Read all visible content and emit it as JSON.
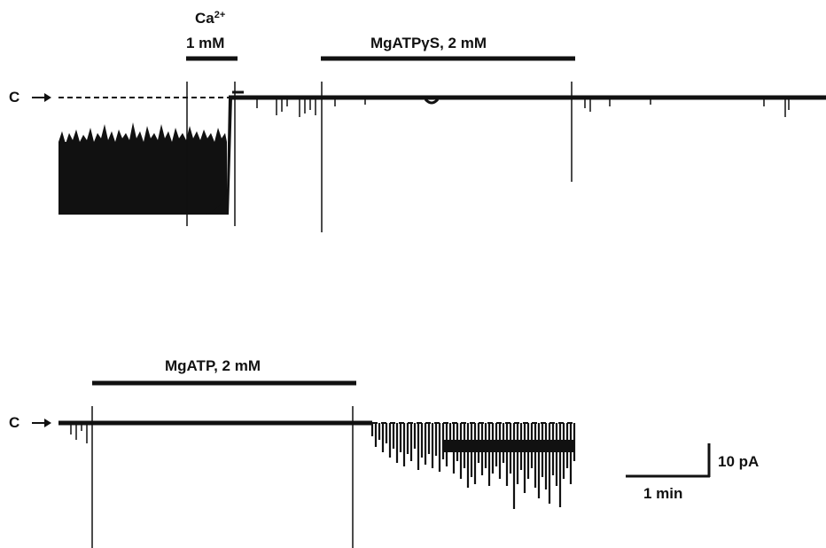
{
  "top_trace": {
    "closed_marker": "C",
    "calcium_label_base": "Ca",
    "calcium_label_sup": "2+",
    "calcium_conc": "1 mM",
    "atp_gamma_s_label": "MgATPγS, 2 mM"
  },
  "bottom_trace": {
    "closed_marker": "C",
    "atp_label": "MgATP, 2 mM"
  },
  "scale_bar": {
    "current": "10 pA",
    "time": "1 min"
  },
  "colors": {
    "trace": "#111111",
    "background": "#ffffff"
  }
}
